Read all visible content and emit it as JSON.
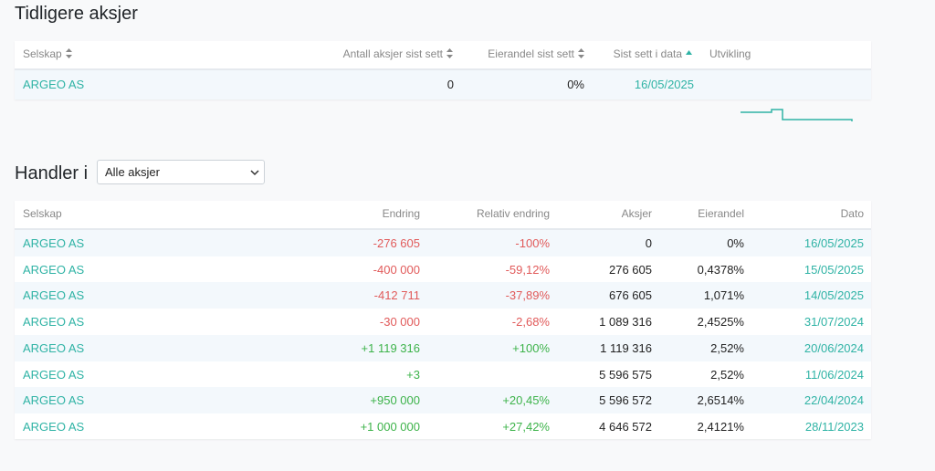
{
  "section1": {
    "title": "Tidligere aksjer",
    "headers": {
      "company": "Selskap",
      "shares_last_seen": "Antall aksjer sist sett",
      "ownership_last_seen": "Eierandel sist sett",
      "last_seen_date": "Sist sett i data",
      "trend": "Utvikling"
    },
    "rows": [
      {
        "company": "ARGEO AS",
        "shares": "0",
        "ownership": "0%",
        "date": "16/05/2025"
      }
    ]
  },
  "section2": {
    "title": "Handler i",
    "filter": {
      "selected": "Alle aksjer"
    },
    "headers": {
      "company": "Selskap",
      "change": "Endring",
      "relative_change": "Relativ endring",
      "shares": "Aksjer",
      "ownership": "Eierandel",
      "date": "Dato"
    },
    "rows": [
      {
        "company": "ARGEO AS",
        "change": "-276 605",
        "relative": "-100%",
        "shares": "0",
        "ownership": "0%",
        "date": "16/05/2025",
        "dir": "neg"
      },
      {
        "company": "ARGEO AS",
        "change": "-400 000",
        "relative": "-59,12%",
        "shares": "276 605",
        "ownership": "0,4378%",
        "date": "15/05/2025",
        "dir": "neg"
      },
      {
        "company": "ARGEO AS",
        "change": "-412 711",
        "relative": "-37,89%",
        "shares": "676 605",
        "ownership": "1,071%",
        "date": "14/05/2025",
        "dir": "neg"
      },
      {
        "company": "ARGEO AS",
        "change": "-30 000",
        "relative": "-2,68%",
        "shares": "1 089 316",
        "ownership": "2,4525%",
        "date": "31/07/2024",
        "dir": "neg"
      },
      {
        "company": "ARGEO AS",
        "change": "+1 119 316",
        "relative": "+100%",
        "shares": "1 119 316",
        "ownership": "2,52%",
        "date": "20/06/2024",
        "dir": "pos"
      },
      {
        "company": "ARGEO AS",
        "change": "+3",
        "relative": "",
        "shares": "5 596 575",
        "ownership": "2,52%",
        "date": "11/06/2024",
        "dir": "pos"
      },
      {
        "company": "ARGEO AS",
        "change": "+950 000",
        "relative": "+20,45%",
        "shares": "5 596 572",
        "ownership": "2,6514%",
        "date": "22/04/2024",
        "dir": "pos"
      },
      {
        "company": "ARGEO AS",
        "change": "+1 000 000",
        "relative": "+27,42%",
        "shares": "4 646 572",
        "ownership": "2,4121%",
        "date": "28/11/2023",
        "dir": "pos"
      }
    ]
  },
  "colors": {
    "accent": "#2fb3a5",
    "negative": "#e15a5a",
    "positive": "#3db34a"
  },
  "icons": {
    "sort": "sort-both-icon",
    "sort_active": "sort-up-icon",
    "select": "chevron-down-icon"
  }
}
